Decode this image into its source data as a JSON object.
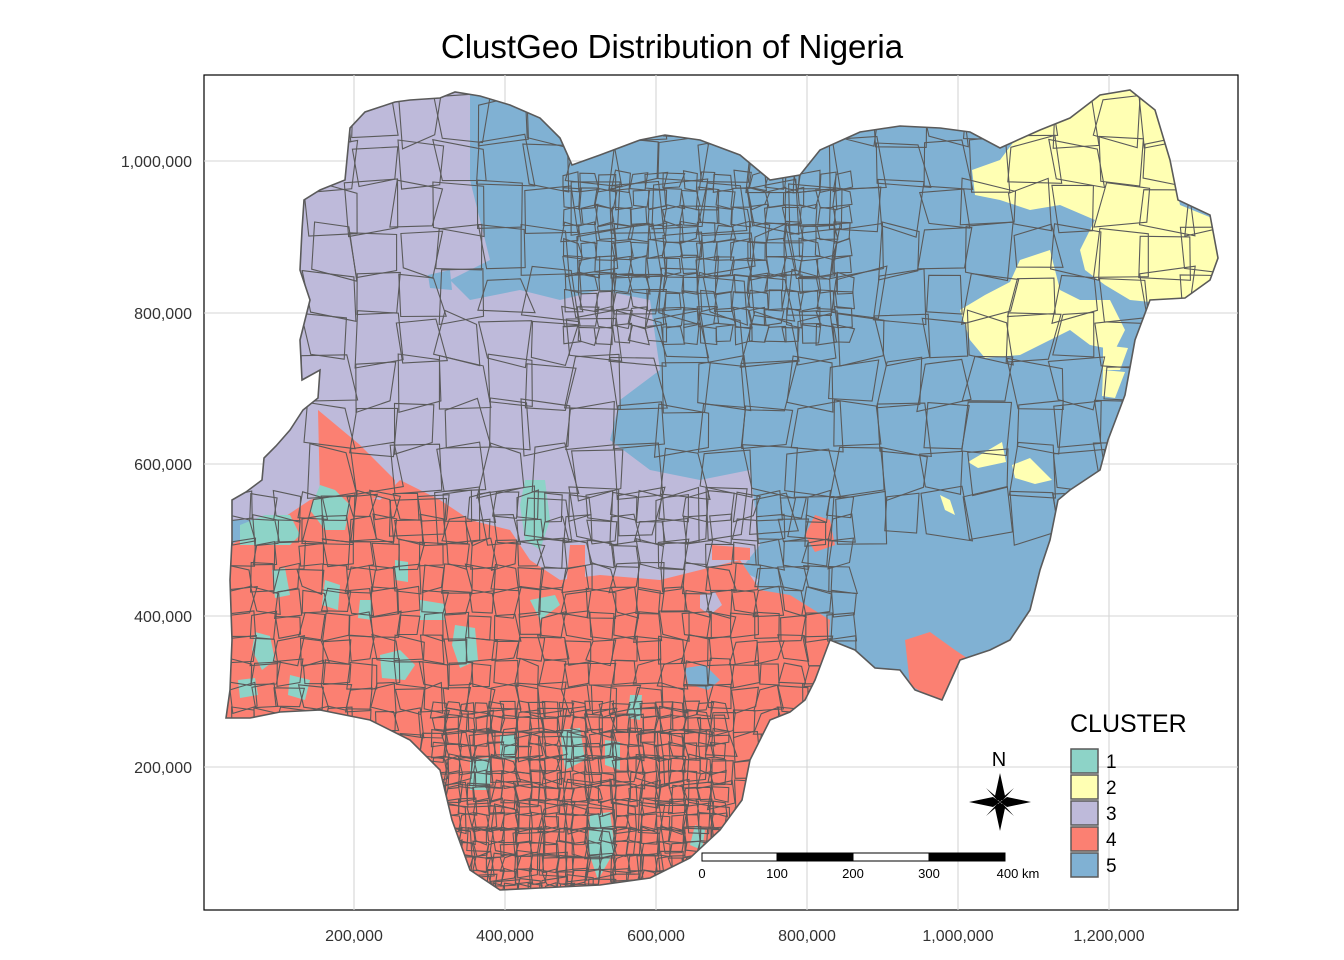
{
  "title": "ClustGeo Distribution of Nigeria",
  "map": {
    "x_ticks": [
      "200,000",
      "400,000",
      "600,000",
      "800,000",
      "1,000,000",
      "1,200,000"
    ],
    "y_ticks": [
      "1,000,000",
      "800,000",
      "600,000",
      "400,000",
      "200,000"
    ],
    "grid": true
  },
  "legend": {
    "title": "CLUSTER",
    "placement": "bottom-right",
    "items": [
      {
        "label": "1",
        "color": "#8DD3C7"
      },
      {
        "label": "2",
        "color": "#FFFFB3"
      },
      {
        "label": "3",
        "color": "#BEBADA"
      },
      {
        "label": "4",
        "color": "#FB8072"
      },
      {
        "label": "5",
        "color": "#80B1D3"
      }
    ]
  },
  "scale_bar": {
    "labels": [
      "0",
      "100",
      "200",
      "300",
      "400 km"
    ]
  },
  "north_arrow": {
    "label": "N"
  }
}
